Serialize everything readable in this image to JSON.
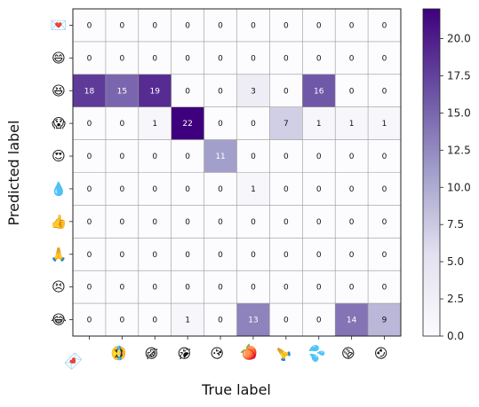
{
  "chart_data": {
    "type": "heatmap",
    "xlabel": "True label",
    "ylabel": "Predicted label",
    "x_tick_labels": [
      "💌",
      "🤣",
      "😂",
      "😭",
      "😘",
      "🍑",
      "🙏",
      "💦",
      "😩",
      "😍"
    ],
    "y_tick_labels": [
      "💌",
      "😄",
      "😆",
      "😱",
      "😍",
      "💧",
      "👍",
      "🙏",
      "😣",
      "😂"
    ],
    "matrix": [
      [
        0,
        0,
        0,
        0,
        0,
        0,
        0,
        0,
        0,
        0
      ],
      [
        0,
        0,
        0,
        0,
        0,
        0,
        0,
        0,
        0,
        0
      ],
      [
        18,
        15,
        19,
        0,
        0,
        3,
        0,
        16,
        0,
        0
      ],
      [
        0,
        0,
        1,
        22,
        0,
        0,
        7,
        1,
        1,
        1
      ],
      [
        0,
        0,
        0,
        0,
        11,
        0,
        0,
        0,
        0,
        0
      ],
      [
        0,
        0,
        0,
        0,
        0,
        1,
        0,
        0,
        0,
        0
      ],
      [
        0,
        0,
        0,
        0,
        0,
        0,
        0,
        0,
        0,
        0
      ],
      [
        0,
        0,
        0,
        0,
        0,
        0,
        0,
        0,
        0,
        0
      ],
      [
        0,
        0,
        0,
        0,
        0,
        0,
        0,
        0,
        0,
        0
      ],
      [
        0,
        0,
        0,
        1,
        0,
        13,
        0,
        0,
        14,
        9
      ]
    ],
    "colorbar": {
      "range": [
        0,
        22
      ],
      "ticks": [
        "0.0",
        "2.5",
        "5.0",
        "7.5",
        "10.0",
        "12.5",
        "15.0",
        "17.5",
        "20.0"
      ],
      "colormap": "Purples"
    },
    "grid": true
  }
}
